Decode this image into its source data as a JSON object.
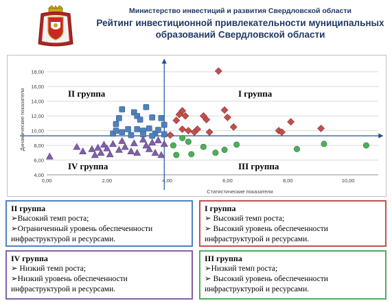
{
  "header": {
    "ministry": "Министерство инвестиций и развития Свердловской области",
    "title_line1": "Рейтинг инвестиционной привлекательности муниципальных",
    "title_line2": "образований Свердловской области"
  },
  "chart_data": {
    "type": "scatter",
    "xlabel": "Статистические показатели",
    "ylabel": "Динамические показатели",
    "xlim": [
      0,
      11
    ],
    "ylim": [
      4,
      19
    ],
    "x_ticks": [
      "0,00",
      "2,00",
      "4,00",
      "6,00",
      "8,00",
      "10,00"
    ],
    "y_ticks": [
      "4,00",
      "6,00",
      "8,00",
      "10,00",
      "12,00",
      "14,00",
      "16,00",
      "18,00"
    ],
    "grid": true,
    "divider_x": 3.9,
    "divider_y": 9.3,
    "quadrant_labels": {
      "top_left": "II группа",
      "top_right": "I группа",
      "bottom_left": "IV группа",
      "bottom_right": "III группа"
    },
    "series": [
      {
        "marker": "square",
        "color": "#4f81bd",
        "points": [
          [
            2.2,
            9.6
          ],
          [
            2.3,
            10.9
          ],
          [
            2.3,
            10.0
          ],
          [
            2.4,
            11.7
          ],
          [
            2.5,
            12.9
          ],
          [
            2.5,
            9.8
          ],
          [
            2.7,
            10.2
          ],
          [
            2.9,
            12.5
          ],
          [
            3.0,
            12.0
          ],
          [
            3.0,
            10.2
          ],
          [
            3.1,
            11.5
          ],
          [
            3.2,
            10.0
          ],
          [
            3.3,
            13.2
          ],
          [
            3.4,
            10.3
          ],
          [
            3.5,
            11.8
          ],
          [
            3.6,
            9.6
          ],
          [
            3.7,
            10.1
          ],
          [
            3.8,
            11.7
          ],
          [
            3.9,
            10.8
          ],
          [
            3.9,
            9.5
          ],
          [
            2.8,
            9.4
          ],
          [
            3.5,
            9.3
          ],
          [
            3.2,
            9.5
          ]
        ]
      },
      {
        "marker": "diamond",
        "color": "#c0504d",
        "points": [
          [
            4.1,
            9.4
          ],
          [
            4.4,
            12.2
          ],
          [
            4.5,
            12.7
          ],
          [
            4.5,
            10.2
          ],
          [
            4.6,
            12.0
          ],
          [
            4.7,
            10.0
          ],
          [
            4.9,
            9.8
          ],
          [
            5.0,
            10.2
          ],
          [
            5.2,
            12.0
          ],
          [
            5.4,
            9.8
          ],
          [
            5.7,
            18.1
          ],
          [
            5.9,
            12.8
          ],
          [
            6.0,
            11.8
          ],
          [
            6.2,
            10.5
          ],
          [
            7.7,
            10.0
          ],
          [
            7.8,
            9.8
          ],
          [
            8.1,
            11.2
          ],
          [
            9.1,
            10.3
          ],
          [
            5.3,
            11.5
          ],
          [
            4.3,
            11.4
          ]
        ]
      },
      {
        "marker": "circle",
        "color": "#4ead5b",
        "points": [
          [
            4.2,
            8.0
          ],
          [
            4.3,
            6.7
          ],
          [
            4.7,
            8.5
          ],
          [
            4.8,
            6.8
          ],
          [
            5.2,
            7.8
          ],
          [
            5.6,
            7.0
          ],
          [
            5.9,
            7.4
          ],
          [
            6.3,
            8.1
          ],
          [
            8.3,
            7.5
          ],
          [
            9.2,
            8.2
          ],
          [
            10.6,
            8.0
          ],
          [
            4.5,
            9.0
          ]
        ]
      },
      {
        "marker": "triangle",
        "color": "#7f60a8",
        "points": [
          [
            0.1,
            6.5
          ],
          [
            1.0,
            7.8
          ],
          [
            1.2,
            7.2
          ],
          [
            1.5,
            7.5
          ],
          [
            1.6,
            6.7
          ],
          [
            1.7,
            7.7
          ],
          [
            1.8,
            7.0
          ],
          [
            1.9,
            8.1
          ],
          [
            2.0,
            7.6
          ],
          [
            2.1,
            6.8
          ],
          [
            2.2,
            8.2
          ],
          [
            2.4,
            7.4
          ],
          [
            2.6,
            7.8
          ],
          [
            2.8,
            7.2
          ],
          [
            2.9,
            8.3
          ],
          [
            3.0,
            7.0
          ],
          [
            3.2,
            8.8
          ],
          [
            3.3,
            8.0
          ],
          [
            3.4,
            7.5
          ],
          [
            3.5,
            8.4
          ],
          [
            3.6,
            7.0
          ],
          [
            3.7,
            8.7
          ],
          [
            3.8,
            6.7
          ],
          [
            3.9,
            8.2
          ],
          [
            2.5,
            8.6
          ]
        ]
      }
    ]
  },
  "boxes": {
    "II": {
      "title": "II группа",
      "lines": [
        "➢Высокий темп роста;",
        "➢Ограниченный уровень обеспеченности",
        "инфраструктурой и ресурсами."
      ]
    },
    "I": {
      "title": "I группа",
      "lines": [
        "➢  Высокий темп роста;",
        "➢  Высокий уровень обеспеченности",
        "инфраструктурой и ресурсами."
      ]
    },
    "IV": {
      "title": "IV группа",
      "lines": [
        "➢  Низкий темп роста;",
        "➢Низкий уровень обеспеченности",
        "инфраструктурой и ресурсами."
      ]
    },
    "III": {
      "title": "III группа",
      "lines": [
        "➢Низкий темп роста;",
        "➢  Высокий уровень обеспеченности",
        "инфраструктурой и ресурсами."
      ]
    }
  }
}
